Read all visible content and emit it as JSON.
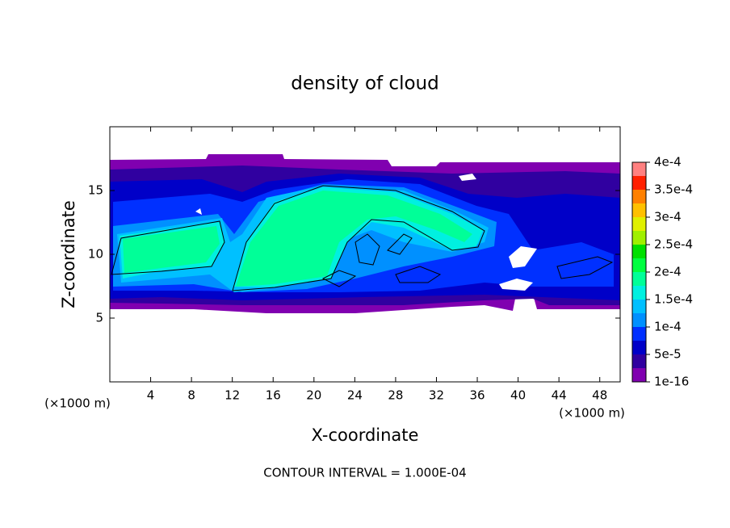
{
  "chart_data": {
    "type": "contour",
    "title": "density of cloud",
    "x_label": "X-coordinate",
    "y_label": "Z-coordinate",
    "x_unit": "(×1000 m)",
    "y_unit": "(×1000 m)",
    "footer": "CONTOUR INTERVAL = 1.000E-04",
    "xlim": [
      0,
      50
    ],
    "ylim": [
      0,
      20
    ],
    "xticks": [
      4,
      8,
      12,
      16,
      20,
      24,
      28,
      32,
      36,
      40,
      44,
      48
    ],
    "yticks": [
      5,
      10,
      15
    ],
    "levels": [
      1e-16,
      2.5e-05,
      5e-05,
      7.5e-05,
      0.0001,
      0.000125,
      0.00015,
      0.000175,
      0.0002,
      0.000225,
      0.00025,
      0.000275,
      0.0003,
      0.000325,
      0.00035,
      0.000375,
      0.0004
    ],
    "colors": [
      "#8000b0",
      "#3000a0",
      "#0000c8",
      "#0030ff",
      "#0090ff",
      "#00c0ff",
      "#00f0e0",
      "#00ff98",
      "#00ff40",
      "#00e000",
      "#a0f000",
      "#e0f000",
      "#ffc000",
      "#ff8000",
      "#ff2000",
      "#ff8080"
    ],
    "colorbar_ticks": [
      1e-16,
      {
        "value": 5e-05,
        "label": "5e-5"
      },
      {
        "value": 0.0001,
        "label": "1e-4"
      },
      {
        "value": 0.00015,
        "label": "1.5e-4"
      },
      {
        "value": 0.0002,
        "label": "2e-4"
      },
      {
        "value": 0.00025,
        "label": "2.5e-4"
      },
      {
        "value": 0.0003,
        "label": "3e-4"
      },
      {
        "value": 0.00035,
        "label": "3.5e-4"
      },
      {
        "value": 0.0004,
        "label": "4e-4"
      }
    ]
  }
}
